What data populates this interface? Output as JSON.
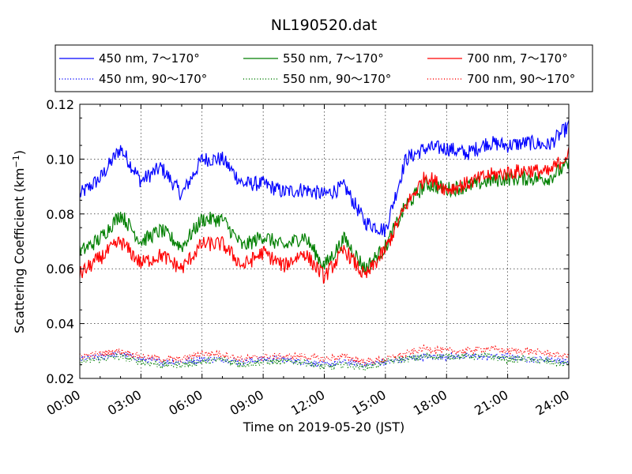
{
  "chart_data": {
    "type": "line",
    "title": "NL190520.dat",
    "xlabel": "Time on 2019-05-20 (JST)",
    "ylabel_main": "Scattering Coefficient (km",
    "ylabel_sup": "−1",
    "ylabel_close": ")",
    "xlim": [
      "00:00",
      "24:00"
    ],
    "ylim": [
      0.02,
      0.12
    ],
    "grid": true,
    "legend_position": "top (above plot)",
    "x_ticks": [
      "00:00",
      "03:00",
      "06:00",
      "09:00",
      "12:00",
      "15:00",
      "18:00",
      "21:00",
      "24:00"
    ],
    "y_ticks": [
      "0.02",
      "0.04",
      "0.06",
      "0.08",
      "0.10",
      "0.12"
    ],
    "x_hours": [
      0,
      1,
      2,
      3,
      4,
      5,
      6,
      7,
      8,
      9,
      10,
      11,
      12,
      13,
      14,
      15,
      16,
      17,
      18,
      19,
      20,
      21,
      22,
      23,
      24
    ],
    "series": [
      {
        "name": "450 nm, 7～170°",
        "color": "#0000ff",
        "style": "solid",
        "values": [
          0.087,
          0.093,
          0.104,
          0.092,
          0.097,
          0.087,
          0.1,
          0.1,
          0.091,
          0.091,
          0.088,
          0.089,
          0.087,
          0.09,
          0.077,
          0.074,
          0.1,
          0.104,
          0.104,
          0.102,
          0.106,
          0.105,
          0.106,
          0.105,
          0.112
        ]
      },
      {
        "name": "450 nm, 90～170°",
        "color": "#0000ff",
        "style": "dotted",
        "values": [
          0.027,
          0.028,
          0.029,
          0.027,
          0.026,
          0.026,
          0.027,
          0.027,
          0.026,
          0.027,
          0.027,
          0.026,
          0.025,
          0.026,
          0.025,
          0.026,
          0.027,
          0.028,
          0.028,
          0.028,
          0.028,
          0.028,
          0.027,
          0.027,
          0.026
        ]
      },
      {
        "name": "550 nm, 7～170°",
        "color": "#007f00",
        "style": "solid",
        "values": [
          0.066,
          0.071,
          0.08,
          0.07,
          0.074,
          0.068,
          0.078,
          0.078,
          0.068,
          0.072,
          0.068,
          0.072,
          0.061,
          0.071,
          0.06,
          0.068,
          0.083,
          0.091,
          0.089,
          0.09,
          0.092,
          0.093,
          0.093,
          0.093,
          0.098
        ]
      },
      {
        "name": "550 nm, 90～170°",
        "color": "#007f00",
        "style": "dotted",
        "values": [
          0.026,
          0.027,
          0.028,
          0.026,
          0.025,
          0.025,
          0.026,
          0.027,
          0.025,
          0.026,
          0.026,
          0.026,
          0.024,
          0.025,
          0.024,
          0.026,
          0.027,
          0.028,
          0.028,
          0.028,
          0.028,
          0.027,
          0.027,
          0.026,
          0.025
        ]
      },
      {
        "name": "700 nm, 7～170°",
        "color": "#ff0000",
        "style": "solid",
        "values": [
          0.058,
          0.064,
          0.07,
          0.062,
          0.065,
          0.06,
          0.069,
          0.069,
          0.061,
          0.066,
          0.061,
          0.066,
          0.057,
          0.067,
          0.057,
          0.067,
          0.083,
          0.094,
          0.089,
          0.091,
          0.094,
          0.095,
          0.096,
          0.095,
          0.102
        ]
      },
      {
        "name": "700 nm, 90～170°",
        "color": "#ff0000",
        "style": "dotted",
        "values": [
          0.028,
          0.029,
          0.03,
          0.028,
          0.027,
          0.027,
          0.029,
          0.029,
          0.027,
          0.028,
          0.028,
          0.028,
          0.027,
          0.028,
          0.026,
          0.027,
          0.029,
          0.031,
          0.03,
          0.03,
          0.031,
          0.03,
          0.03,
          0.029,
          0.028
        ]
      }
    ]
  }
}
